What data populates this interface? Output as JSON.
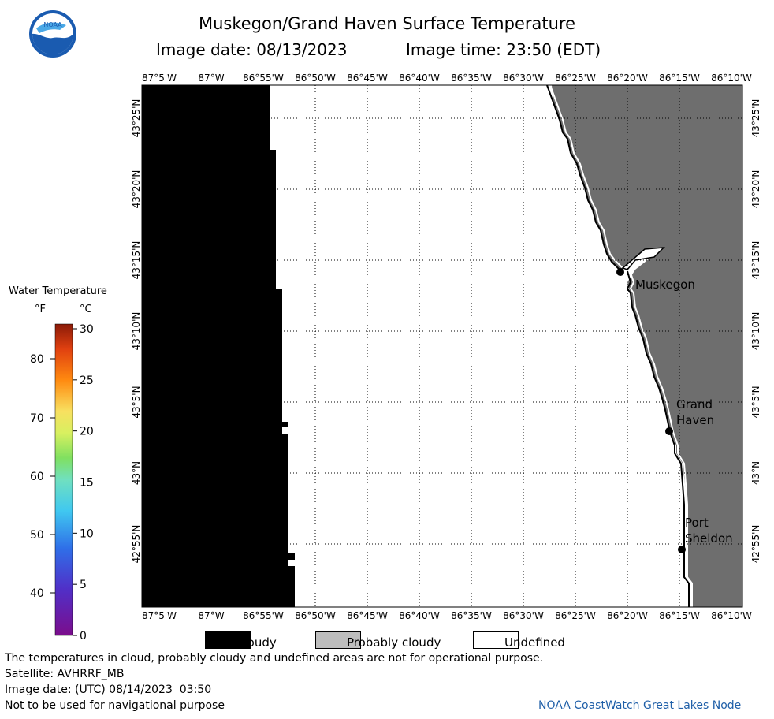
{
  "header": {
    "title": "Muskegon/Grand Haven Surface Temperature",
    "image_date": "Image date: 08/13/2023",
    "image_time": "Image time: 23:50 (EDT)"
  },
  "logo": {
    "text": "NOAA",
    "icon": "noaa-logo-icon",
    "color_outer": "#1a5bb0",
    "color_inner": "#4aa8e6"
  },
  "map": {
    "lon_labels": [
      "87°5'W",
      "87°W",
      "86°55'W",
      "86°50'W",
      "86°45'W",
      "86°40'W",
      "86°35'W",
      "86°30'W",
      "86°25'W",
      "86°20'W",
      "86°15'W",
      "86°10'W"
    ],
    "lat_labels": [
      "43°25'N",
      "43°20'N",
      "43°15'N",
      "43°10'N",
      "43°5'N",
      "43°N",
      "42°55'N"
    ],
    "colors": {
      "cloudy": "#000000",
      "land": "#6e6e6e",
      "undefined": "#ffffff"
    },
    "cities": [
      {
        "name": "Muskegon",
        "lines": [
          "Muskegon"
        ]
      },
      {
        "name": "Grand Haven",
        "lines": [
          "Grand",
          "Haven"
        ]
      },
      {
        "name": "Port Sheldon",
        "lines": [
          "Port",
          "Sheldon"
        ]
      }
    ]
  },
  "colorbar": {
    "title": "Water Temperature",
    "unit_f": "°F",
    "unit_c": "°C",
    "f_ticks": [
      "80",
      "70",
      "60",
      "50",
      "40"
    ],
    "c_ticks": [
      "30",
      "25",
      "20",
      "15",
      "10",
      "5",
      "0"
    ]
  },
  "legend": {
    "cloudy": "Cloudy",
    "probably_cloudy": "Probably cloudy",
    "undefined": "Undefined"
  },
  "footer": {
    "line1": "The temperatures in cloud, probably cloudy and undefined areas are not for operational purpose.",
    "line2": "Satellite: AVHRRF_MB",
    "line3": "Image date: (UTC) 08/14/2023  03:50",
    "line4": "Not to be used for navigational purpose",
    "credit": "NOAA CoastWatch Great Lakes Node"
  }
}
